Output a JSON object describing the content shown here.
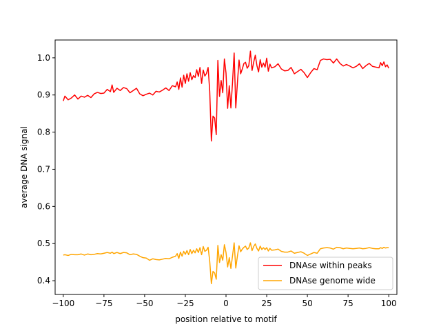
{
  "chart_data": {
    "type": "line",
    "title": "",
    "xlabel": "position relative to motif",
    "ylabel": "average DNA signal",
    "xlim": [
      -105,
      105
    ],
    "ylim": [
      0.363,
      1.048
    ],
    "xticks": [
      -100,
      -75,
      -50,
      -25,
      0,
      25,
      50,
      75,
      100
    ],
    "xtick_labels": [
      "−100",
      "−75",
      "−50",
      "−25",
      "0",
      "25",
      "50",
      "75",
      "100"
    ],
    "yticks": [
      0.4,
      0.5,
      0.6,
      0.7,
      0.8,
      0.9,
      1.0
    ],
    "ytick_labels": [
      "0.4",
      "0.5",
      "0.6",
      "0.7",
      "0.8",
      "0.9",
      "1.0"
    ],
    "grid": false,
    "legend_position": "lower-right",
    "series": [
      {
        "name": "DNAse within peaks",
        "color": "#ff0000",
        "x": [
          -100,
          -99,
          -97,
          -95,
          -93,
          -91,
          -89,
          -87,
          -85,
          -83,
          -81,
          -79,
          -77,
          -75,
          -73,
          -71,
          -70,
          -69,
          -67,
          -65,
          -63,
          -61,
          -59,
          -57,
          -55,
          -53,
          -51,
          -49,
          -47,
          -45,
          -43,
          -41,
          -39,
          -37,
          -35,
          -33,
          -31,
          -30,
          -29,
          -28,
          -27,
          -26,
          -25,
          -24,
          -23,
          -22,
          -21,
          -20,
          -19,
          -18,
          -17,
          -16,
          -15,
          -14,
          -13,
          -12,
          -11,
          -10,
          -9,
          -8,
          -7,
          -6,
          -5,
          -4,
          -3,
          -2,
          -1,
          0,
          1,
          2,
          3,
          4,
          5,
          6,
          7,
          8,
          9,
          10,
          11,
          12,
          13,
          14,
          15,
          16,
          17,
          18,
          19,
          20,
          21,
          22,
          23,
          24,
          25,
          26,
          27,
          28,
          30,
          32,
          34,
          36,
          38,
          40,
          42,
          44,
          46,
          48,
          50,
          52,
          54,
          56,
          58,
          60,
          62,
          64,
          66,
          68,
          70,
          72,
          74,
          76,
          78,
          80,
          82,
          84,
          86,
          88,
          90,
          92,
          94,
          95,
          96,
          97,
          98,
          99
        ],
        "y": [
          0.884,
          0.897,
          0.887,
          0.892,
          0.9,
          0.889,
          0.897,
          0.894,
          0.899,
          0.893,
          0.903,
          0.907,
          0.904,
          0.905,
          0.915,
          0.909,
          0.927,
          0.907,
          0.918,
          0.912,
          0.92,
          0.917,
          0.906,
          0.912,
          0.918,
          0.903,
          0.898,
          0.902,
          0.905,
          0.9,
          0.91,
          0.908,
          0.913,
          0.919,
          0.912,
          0.925,
          0.922,
          0.935,
          0.915,
          0.946,
          0.921,
          0.953,
          0.931,
          0.957,
          0.937,
          0.96,
          0.941,
          0.952,
          0.947,
          0.968,
          0.95,
          0.974,
          0.931,
          0.967,
          0.951,
          0.958,
          0.974,
          0.91,
          0.776,
          0.843,
          0.838,
          0.793,
          0.993,
          0.896,
          0.939,
          0.906,
          0.997,
          0.959,
          0.864,
          0.925,
          0.865,
          0.934,
          1.013,
          0.865,
          0.932,
          0.994,
          0.957,
          0.97,
          0.985,
          0.988,
          0.972,
          0.979,
          1.018,
          0.966,
          0.988,
          1.007,
          0.979,
          0.962,
          0.995,
          0.975,
          0.986,
          0.975,
          0.999,
          0.964,
          0.983,
          0.973,
          0.976,
          0.984,
          0.97,
          0.965,
          0.966,
          0.974,
          0.957,
          0.963,
          0.969,
          0.96,
          0.947,
          0.96,
          0.971,
          0.968,
          0.993,
          0.997,
          0.995,
          0.996,
          0.986,
          0.997,
          0.985,
          0.978,
          0.982,
          0.978,
          0.973,
          0.977,
          0.984,
          0.971,
          0.979,
          0.985,
          0.977,
          0.975,
          0.973,
          0.987,
          0.979,
          0.989,
          0.976,
          0.981
        ],
        "y_extra": [
          0.972
        ]
      },
      {
        "name": "DNAse genome wide",
        "color": "#ffa500",
        "x": [
          -100,
          -99,
          -97,
          -95,
          -93,
          -91,
          -89,
          -87,
          -85,
          -83,
          -81,
          -79,
          -77,
          -75,
          -73,
          -71,
          -70,
          -69,
          -67,
          -65,
          -63,
          -61,
          -59,
          -57,
          -55,
          -53,
          -51,
          -49,
          -47,
          -45,
          -43,
          -41,
          -39,
          -37,
          -35,
          -33,
          -31,
          -30,
          -29,
          -28,
          -27,
          -26,
          -25,
          -24,
          -23,
          -22,
          -21,
          -20,
          -19,
          -18,
          -17,
          -16,
          -15,
          -14,
          -13,
          -12,
          -11,
          -10,
          -9,
          -8,
          -7,
          -6,
          -5,
          -4,
          -3,
          -2,
          -1,
          0,
          1,
          2,
          3,
          4,
          5,
          6,
          7,
          8,
          9,
          10,
          11,
          12,
          13,
          14,
          15,
          16,
          17,
          18,
          19,
          20,
          21,
          22,
          23,
          24,
          25,
          26,
          27,
          28,
          30,
          32,
          34,
          36,
          38,
          40,
          42,
          44,
          46,
          48,
          50,
          52,
          54,
          56,
          58,
          60,
          62,
          64,
          66,
          68,
          70,
          72,
          74,
          76,
          78,
          80,
          82,
          84,
          86,
          88,
          90,
          92,
          94,
          95,
          96,
          97,
          98,
          99
        ],
        "y": [
          0.469,
          0.47,
          0.468,
          0.471,
          0.47,
          0.47,
          0.472,
          0.469,
          0.472,
          0.47,
          0.471,
          0.473,
          0.472,
          0.474,
          0.476,
          0.474,
          0.477,
          0.473,
          0.476,
          0.473,
          0.476,
          0.475,
          0.47,
          0.472,
          0.471,
          0.466,
          0.462,
          0.461,
          0.455,
          0.459,
          0.457,
          0.456,
          0.458,
          0.46,
          0.459,
          0.463,
          0.466,
          0.473,
          0.46,
          0.477,
          0.466,
          0.479,
          0.471,
          0.481,
          0.47,
          0.484,
          0.473,
          0.482,
          0.475,
          0.486,
          0.476,
          0.489,
          0.47,
          0.492,
          0.479,
          0.482,
          0.49,
          0.452,
          0.392,
          0.425,
          0.421,
          0.404,
          0.495,
          0.449,
          0.47,
          0.455,
          0.497,
          0.476,
          0.437,
          0.462,
          0.433,
          0.467,
          0.502,
          0.434,
          0.466,
          0.494,
          0.478,
          0.485,
          0.49,
          0.493,
          0.484,
          0.488,
          0.502,
          0.481,
          0.492,
          0.499,
          0.487,
          0.48,
          0.493,
          0.484,
          0.489,
          0.484,
          0.489,
          0.48,
          0.487,
          0.482,
          0.483,
          0.485,
          0.479,
          0.477,
          0.477,
          0.48,
          0.474,
          0.476,
          0.478,
          0.474,
          0.468,
          0.472,
          0.476,
          0.474,
          0.486,
          0.488,
          0.489,
          0.488,
          0.485,
          0.49,
          0.489,
          0.486,
          0.488,
          0.487,
          0.486,
          0.487,
          0.488,
          0.486,
          0.487,
          0.489,
          0.487,
          0.486,
          0.486,
          0.489,
          0.487,
          0.49,
          0.488,
          0.489
        ],
        "y_extra": [
          0.489
        ]
      }
    ]
  }
}
